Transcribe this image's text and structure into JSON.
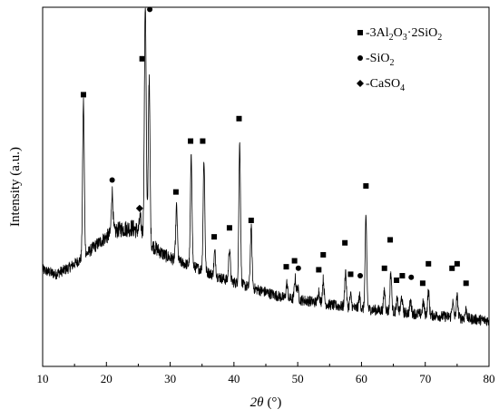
{
  "chart_data": {
    "type": "line",
    "title": "",
    "xlabel": "2θ (°)",
    "xlabel_parts": {
      "var": "2θ",
      "unit": "(°)"
    },
    "ylabel": "Intensity (a.u.)",
    "xlim": [
      10,
      80
    ],
    "x_ticks": [
      10,
      20,
      30,
      40,
      50,
      60,
      70,
      80
    ],
    "y_ticks_shown": false,
    "grid": false,
    "legend_position": "top-right",
    "legend": [
      {
        "marker": "square",
        "label": "-3Al2O3·2SiO2",
        "parts": [
          "-3Al",
          "2",
          "O",
          "3",
          "·2SiO",
          "2"
        ]
      },
      {
        "marker": "circle",
        "label": "-SiO2",
        "parts": [
          "-SiO",
          "2"
        ]
      },
      {
        "marker": "diamond",
        "label": "-CaSO4",
        "parts": [
          "-CaSO",
          "4"
        ]
      }
    ],
    "series": [
      {
        "baseline": [
          [
            10,
            0.235
          ],
          [
            12,
            0.22
          ],
          [
            14,
            0.24
          ],
          [
            16,
            0.27
          ],
          [
            18,
            0.31
          ],
          [
            20,
            0.345
          ],
          [
            22,
            0.37
          ],
          [
            24,
            0.375
          ],
          [
            25.5,
            0.36
          ],
          [
            27,
            0.32
          ],
          [
            29,
            0.285
          ],
          [
            31,
            0.265
          ],
          [
            33,
            0.25
          ],
          [
            35,
            0.235
          ],
          [
            37,
            0.215
          ],
          [
            39,
            0.2
          ],
          [
            42,
            0.18
          ],
          [
            45,
            0.16
          ],
          [
            48,
            0.14
          ],
          [
            52,
            0.13
          ],
          [
            56,
            0.115
          ],
          [
            60,
            0.105
          ],
          [
            65,
            0.095
          ],
          [
            70,
            0.085
          ],
          [
            75,
            0.075
          ],
          [
            80,
            0.065
          ]
        ],
        "peaks": [
          {
            "x": 16.4,
            "h": 0.52,
            "w": 0.13
          },
          {
            "x": 20.9,
            "h": 0.14,
            "w": 0.13
          },
          {
            "x": 25.3,
            "h": 0.045,
            "w": 0.13
          },
          {
            "x": 26.1,
            "h": 0.78,
            "w": 0.14
          },
          {
            "x": 26.7,
            "h": 0.55,
            "w": 0.13
          },
          {
            "x": 31.0,
            "h": 0.18,
            "w": 0.13
          },
          {
            "x": 33.3,
            "h": 0.36,
            "w": 0.13
          },
          {
            "x": 35.3,
            "h": 0.37,
            "w": 0.13
          },
          {
            "x": 37.0,
            "h": 0.08,
            "w": 0.13
          },
          {
            "x": 39.3,
            "h": 0.11,
            "w": 0.13
          },
          {
            "x": 40.9,
            "h": 0.47,
            "w": 0.13
          },
          {
            "x": 42.7,
            "h": 0.2,
            "w": 0.13
          },
          {
            "x": 48.3,
            "h": 0.05,
            "w": 0.13
          },
          {
            "x": 49.6,
            "h": 0.07,
            "w": 0.13
          },
          {
            "x": 50.0,
            "h": 0.04,
            "w": 0.13
          },
          {
            "x": 53.3,
            "h": 0.04,
            "w": 0.13
          },
          {
            "x": 54.0,
            "h": 0.08,
            "w": 0.13
          },
          {
            "x": 57.5,
            "h": 0.12,
            "w": 0.13
          },
          {
            "x": 58.3,
            "h": 0.04,
            "w": 0.13
          },
          {
            "x": 59.7,
            "h": 0.04,
            "w": 0.13
          },
          {
            "x": 60.7,
            "h": 0.3,
            "w": 0.13
          },
          {
            "x": 63.6,
            "h": 0.07,
            "w": 0.13
          },
          {
            "x": 64.6,
            "h": 0.13,
            "w": 0.13
          },
          {
            "x": 65.6,
            "h": 0.04,
            "w": 0.13
          },
          {
            "x": 66.3,
            "h": 0.05,
            "w": 0.13
          },
          {
            "x": 67.7,
            "h": 0.04,
            "w": 0.13
          },
          {
            "x": 69.7,
            "h": 0.04,
            "w": 0.13
          },
          {
            "x": 70.5,
            "h": 0.08,
            "w": 0.13
          },
          {
            "x": 74.3,
            "h": 0.05,
            "w": 0.13
          },
          {
            "x": 75.0,
            "h": 0.07,
            "w": 0.13
          },
          {
            "x": 76.4,
            "h": 0.03,
            "w": 0.13
          }
        ]
      }
    ],
    "annotations": [
      {
        "x": 16.4,
        "y": 0.82,
        "marker": "square"
      },
      {
        "x": 20.9,
        "y": 0.535,
        "marker": "circle"
      },
      {
        "x": 25.2,
        "y": 0.44,
        "marker": "diamond"
      },
      {
        "x": 26.0,
        "y": 1.2,
        "marker": "square"
      },
      {
        "x": 25.6,
        "y": 0.94,
        "marker": "square"
      },
      {
        "x": 26.8,
        "y": 1.105,
        "marker": "circle"
      },
      {
        "x": 30.9,
        "y": 0.495,
        "marker": "square"
      },
      {
        "x": 33.2,
        "y": 0.665,
        "marker": "square"
      },
      {
        "x": 35.1,
        "y": 0.665,
        "marker": "square"
      },
      {
        "x": 36.9,
        "y": 0.345,
        "marker": "square"
      },
      {
        "x": 39.3,
        "y": 0.375,
        "marker": "square"
      },
      {
        "x": 40.8,
        "y": 0.74,
        "marker": "square"
      },
      {
        "x": 42.7,
        "y": 0.4,
        "marker": "square"
      },
      {
        "x": 48.2,
        "y": 0.245,
        "marker": "square"
      },
      {
        "x": 49.5,
        "y": 0.265,
        "marker": "square"
      },
      {
        "x": 50.1,
        "y": 0.24,
        "marker": "circle"
      },
      {
        "x": 53.3,
        "y": 0.235,
        "marker": "square"
      },
      {
        "x": 54.0,
        "y": 0.285,
        "marker": "square"
      },
      {
        "x": 57.4,
        "y": 0.325,
        "marker": "square"
      },
      {
        "x": 58.3,
        "y": 0.22,
        "marker": "square"
      },
      {
        "x": 59.8,
        "y": 0.215,
        "marker": "circle"
      },
      {
        "x": 60.7,
        "y": 0.515,
        "marker": "square"
      },
      {
        "x": 63.6,
        "y": 0.24,
        "marker": "square"
      },
      {
        "x": 64.5,
        "y": 0.335,
        "marker": "square"
      },
      {
        "x": 65.5,
        "y": 0.2,
        "marker": "square"
      },
      {
        "x": 66.4,
        "y": 0.215,
        "marker": "square"
      },
      {
        "x": 67.8,
        "y": 0.21,
        "marker": "circle"
      },
      {
        "x": 69.6,
        "y": 0.19,
        "marker": "square"
      },
      {
        "x": 70.5,
        "y": 0.255,
        "marker": "square"
      },
      {
        "x": 74.2,
        "y": 0.24,
        "marker": "square"
      },
      {
        "x": 75.0,
        "y": 0.255,
        "marker": "square"
      },
      {
        "x": 76.4,
        "y": 0.19,
        "marker": "square"
      }
    ]
  }
}
